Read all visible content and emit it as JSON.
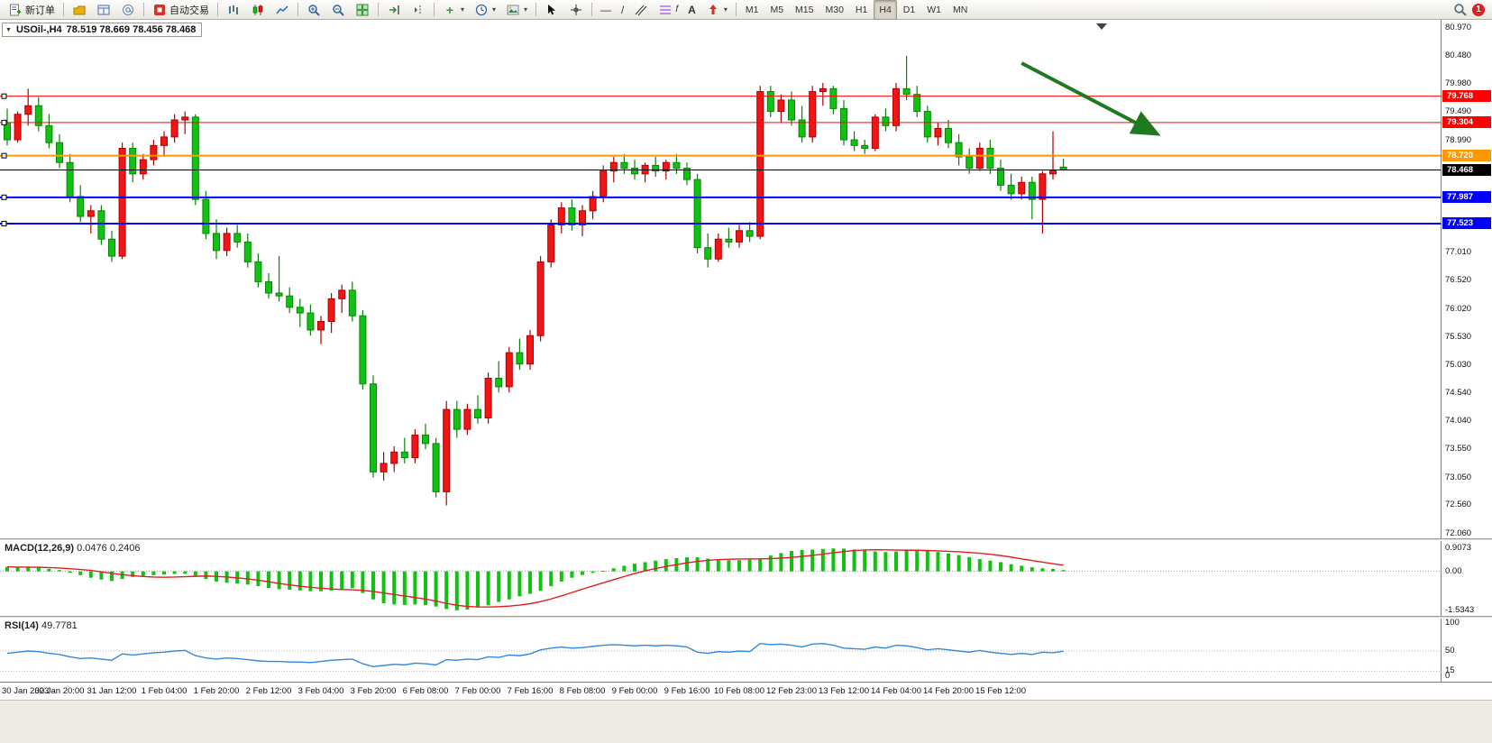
{
  "toolbar": {
    "new_order_label": "新订单",
    "autotrading_label": "自动交易",
    "timeframes": [
      "M1",
      "M5",
      "M15",
      "M30",
      "H1",
      "H4",
      "D1",
      "W1",
      "MN"
    ],
    "active_timeframe": "H4",
    "notification_count": "1"
  },
  "icons": {
    "collapse": "▼",
    "caret": "▾",
    "plus": "+",
    "dash": "—",
    "slash": "/",
    "fib_f": "f",
    "letter_a": "A"
  },
  "chart": {
    "title_symbol": "USOil-,H4",
    "title_ohlc": "78.519 78.669 78.456 78.468"
  },
  "indicators": {
    "macd": {
      "label": "MACD(12,26,9)",
      "value_main": "0.0476",
      "value_signal": "0.2406",
      "axis": [
        "0.9073",
        "0.00",
        "-1.5343"
      ]
    },
    "rsi": {
      "label": "RSI(14)",
      "value": "49.7781",
      "axis": [
        "100",
        "50",
        "15",
        "0"
      ]
    }
  },
  "chart_data": {
    "type": "candlestick",
    "symbol": "USOil-",
    "timeframe": "H4",
    "ohlc_display": {
      "open": "78.519",
      "high": "78.669",
      "low": "78.456",
      "close": "78.468"
    },
    "price_axis": [
      "80.970",
      "80.480",
      "79.980",
      "79.490",
      "78.990",
      "78.500",
      "78.010",
      "77.520",
      "77.010",
      "76.520",
      "76.020",
      "75.530",
      "75.030",
      "74.540",
      "74.040",
      "73.550",
      "73.050",
      "72.560",
      "72.060"
    ],
    "time_labels": [
      "30 Jan 2023",
      "30 Jan 20:00",
      "31 Jan 12:00",
      "1 Feb 04:00",
      "1 Feb 20:00",
      "2 Feb 12:00",
      "3 Feb 04:00",
      "3 Feb 20:00",
      "6 Feb 08:00",
      "7 Feb 00:00",
      "7 Feb 16:00",
      "8 Feb 08:00",
      "9 Feb 00:00",
      "9 Feb 16:00",
      "10 Feb 08:00",
      "12 Feb 23:00",
      "13 Feb 12:00",
      "14 Feb 04:00",
      "14 Feb 20:00",
      "15 Feb 12:00"
    ],
    "colors": {
      "up": "#f21515",
      "up_border": "#b00000",
      "down": "#12c212",
      "down_border": "#078507"
    },
    "hlines": [
      {
        "name": "resistance-line-1",
        "price": 79.768,
        "label": "79.768",
        "color": "#fe0000",
        "width": 1,
        "handle": true
      },
      {
        "name": "resistance-line-2",
        "price": 79.304,
        "label": "79.304",
        "color": "#fe0000",
        "width": 1,
        "handle": true
      },
      {
        "name": "pivot-line",
        "price": 78.72,
        "label": "78.720",
        "color": "#ff9800",
        "width": 2,
        "handle": true
      },
      {
        "name": "current-price-line",
        "price": 78.468,
        "label": "78.468",
        "color": "#000000",
        "width": 1,
        "handle": false
      },
      {
        "name": "support-line-1",
        "price": 77.987,
        "label": "77.987",
        "color": "#0000fe",
        "width": 2,
        "handle": true
      },
      {
        "name": "support-line-2",
        "price": 77.523,
        "label": "77.523",
        "color": "#0000fe",
        "width": 2,
        "handle": true
      }
    ],
    "arrow": {
      "i1": 97,
      "p1": 80.35,
      "i2": 110,
      "p2": 79.1,
      "color": "#1f7a1f"
    },
    "candles": [
      [
        79.3,
        79.55,
        78.9,
        79.0
      ],
      [
        79.0,
        79.5,
        78.95,
        79.45
      ],
      [
        79.45,
        79.9,
        79.25,
        79.6
      ],
      [
        79.6,
        79.75,
        79.15,
        79.25
      ],
      [
        79.25,
        79.45,
        78.85,
        78.95
      ],
      [
        78.95,
        79.1,
        78.5,
        78.6
      ],
      [
        78.6,
        78.75,
        77.9,
        78.0
      ],
      [
        78.0,
        78.2,
        77.55,
        77.65
      ],
      [
        77.65,
        77.85,
        77.35,
        77.75
      ],
      [
        77.75,
        77.85,
        77.15,
        77.25
      ],
      [
        77.25,
        77.4,
        76.85,
        76.95
      ],
      [
        76.95,
        78.95,
        76.9,
        78.85
      ],
      [
        78.85,
        78.95,
        78.25,
        78.4
      ],
      [
        78.4,
        78.75,
        78.3,
        78.65
      ],
      [
        78.65,
        79.0,
        78.55,
        78.9
      ],
      [
        78.9,
        79.15,
        78.7,
        79.05
      ],
      [
        79.05,
        79.45,
        78.95,
        79.35
      ],
      [
        79.35,
        79.5,
        79.1,
        79.4
      ],
      [
        79.4,
        79.45,
        77.85,
        77.95
      ],
      [
        77.95,
        78.1,
        77.25,
        77.35
      ],
      [
        77.35,
        77.6,
        76.9,
        77.05
      ],
      [
        77.05,
        77.45,
        76.95,
        77.35
      ],
      [
        77.35,
        77.5,
        77.1,
        77.2
      ],
      [
        77.2,
        77.35,
        76.75,
        76.85
      ],
      [
        76.85,
        77.0,
        76.4,
        76.5
      ],
      [
        76.5,
        76.65,
        76.2,
        76.3
      ],
      [
        76.3,
        76.95,
        76.15,
        76.25
      ],
      [
        76.25,
        76.4,
        75.95,
        76.05
      ],
      [
        76.05,
        76.2,
        75.7,
        75.95
      ],
      [
        75.95,
        76.1,
        75.55,
        75.65
      ],
      [
        75.65,
        75.9,
        75.4,
        75.8
      ],
      [
        75.8,
        76.3,
        75.6,
        76.2
      ],
      [
        76.2,
        76.45,
        75.95,
        76.35
      ],
      [
        76.35,
        76.5,
        75.8,
        75.9
      ],
      [
        75.9,
        76.0,
        74.6,
        74.7
      ],
      [
        74.7,
        74.85,
        73.05,
        73.15
      ],
      [
        73.15,
        73.5,
        73.0,
        73.3
      ],
      [
        73.3,
        73.6,
        73.15,
        73.5
      ],
      [
        73.5,
        73.75,
        73.3,
        73.4
      ],
      [
        73.4,
        73.9,
        73.3,
        73.8
      ],
      [
        73.8,
        74.0,
        73.55,
        73.65
      ],
      [
        73.65,
        73.75,
        72.7,
        72.8
      ],
      [
        72.8,
        74.4,
        72.56,
        74.25
      ],
      [
        74.25,
        74.4,
        73.75,
        73.9
      ],
      [
        73.9,
        74.35,
        73.8,
        74.25
      ],
      [
        74.25,
        74.5,
        74.0,
        74.1
      ],
      [
        74.1,
        74.9,
        74.0,
        74.8
      ],
      [
        74.8,
        75.1,
        74.55,
        74.65
      ],
      [
        74.65,
        75.35,
        74.55,
        75.25
      ],
      [
        75.25,
        75.5,
        74.95,
        75.05
      ],
      [
        75.05,
        75.65,
        74.95,
        75.55
      ],
      [
        75.55,
        76.95,
        75.45,
        76.85
      ],
      [
        76.85,
        77.6,
        76.75,
        77.5
      ],
      [
        77.5,
        77.9,
        77.35,
        77.8
      ],
      [
        77.8,
        77.95,
        77.4,
        77.5
      ],
      [
        77.5,
        77.85,
        77.3,
        77.75
      ],
      [
        77.75,
        78.1,
        77.6,
        78.0
      ],
      [
        78.0,
        78.55,
        77.9,
        78.45
      ],
      [
        78.45,
        78.7,
        78.25,
        78.6
      ],
      [
        78.6,
        78.75,
        78.4,
        78.5
      ],
      [
        78.5,
        78.65,
        78.3,
        78.4
      ],
      [
        78.4,
        78.6,
        78.25,
        78.55
      ],
      [
        78.55,
        78.7,
        78.35,
        78.45
      ],
      [
        78.45,
        78.65,
        78.3,
        78.6
      ],
      [
        78.6,
        78.75,
        78.4,
        78.5
      ],
      [
        78.5,
        78.6,
        78.2,
        78.3
      ],
      [
        78.3,
        78.4,
        77.0,
        77.1
      ],
      [
        77.1,
        77.35,
        76.75,
        76.9
      ],
      [
        76.9,
        77.35,
        76.85,
        77.25
      ],
      [
        77.25,
        77.45,
        77.1,
        77.2
      ],
      [
        77.2,
        77.5,
        77.1,
        77.4
      ],
      [
        77.4,
        77.55,
        77.2,
        77.3
      ],
      [
        77.3,
        79.95,
        77.25,
        79.85
      ],
      [
        79.85,
        79.95,
        79.4,
        79.5
      ],
      [
        79.5,
        79.8,
        79.3,
        79.7
      ],
      [
        79.7,
        79.85,
        79.25,
        79.35
      ],
      [
        79.35,
        79.6,
        78.95,
        79.05
      ],
      [
        79.05,
        79.95,
        78.95,
        79.85
      ],
      [
        79.85,
        80.0,
        79.6,
        79.9
      ],
      [
        79.9,
        79.95,
        79.45,
        79.55
      ],
      [
        79.55,
        79.7,
        78.9,
        79.0
      ],
      [
        79.0,
        79.15,
        78.8,
        78.9
      ],
      [
        78.9,
        79.0,
        78.75,
        78.85
      ],
      [
        78.85,
        79.45,
        78.8,
        79.4
      ],
      [
        79.4,
        79.55,
        79.15,
        79.25
      ],
      [
        79.25,
        80.0,
        79.15,
        79.9
      ],
      [
        79.9,
        80.48,
        79.7,
        79.8
      ],
      [
        79.8,
        79.95,
        79.4,
        79.5
      ],
      [
        79.5,
        79.6,
        78.95,
        79.05
      ],
      [
        79.05,
        79.3,
        78.9,
        79.2
      ],
      [
        79.2,
        79.35,
        78.85,
        78.95
      ],
      [
        78.95,
        79.1,
        78.55,
        78.7
      ],
      [
        78.7,
        78.85,
        78.4,
        78.5
      ],
      [
        78.5,
        78.95,
        78.45,
        78.85
      ],
      [
        78.85,
        79.0,
        78.4,
        78.5
      ],
      [
        78.5,
        78.65,
        78.1,
        78.2
      ],
      [
        78.2,
        78.4,
        77.95,
        78.05
      ],
      [
        78.05,
        78.35,
        77.95,
        78.25
      ],
      [
        78.25,
        78.35,
        77.6,
        77.95
      ],
      [
        77.95,
        78.45,
        77.35,
        78.4
      ],
      [
        78.4,
        79.15,
        78.3,
        78.45
      ],
      [
        78.519,
        78.669,
        78.456,
        78.468
      ]
    ],
    "macd": {
      "color_hist": "#12c212",
      "color_signal": "#e02020",
      "hist": [
        0.18,
        0.15,
        0.17,
        0.14,
        0.1,
        0.05,
        -0.05,
        -0.15,
        -0.25,
        -0.32,
        -0.38,
        -0.3,
        -0.22,
        -0.18,
        -0.15,
        -0.12,
        -0.1,
        -0.1,
        -0.2,
        -0.3,
        -0.4,
        -0.45,
        -0.48,
        -0.52,
        -0.58,
        -0.65,
        -0.7,
        -0.72,
        -0.75,
        -0.78,
        -0.78,
        -0.75,
        -0.7,
        -0.66,
        -0.85,
        -1.1,
        -1.25,
        -1.3,
        -1.32,
        -1.3,
        -1.32,
        -1.38,
        -1.48,
        -1.53,
        -1.5,
        -1.42,
        -1.33,
        -1.2,
        -1.1,
        -0.98,
        -0.88,
        -0.76,
        -0.58,
        -0.4,
        -0.25,
        -0.14,
        -0.06,
        0.02,
        0.12,
        0.22,
        0.3,
        0.36,
        0.42,
        0.48,
        0.52,
        0.55,
        0.55,
        0.5,
        0.46,
        0.44,
        0.44,
        0.46,
        0.48,
        0.62,
        0.72,
        0.8,
        0.84,
        0.85,
        0.88,
        0.9,
        0.89,
        0.86,
        0.82,
        0.78,
        0.76,
        0.78,
        0.82,
        0.84,
        0.82,
        0.76,
        0.7,
        0.64,
        0.56,
        0.48,
        0.42,
        0.36,
        0.28,
        0.22,
        0.16,
        0.12,
        0.1,
        0.05
      ]
    },
    "rsi": {
      "color": "#3388dd",
      "levels": [
        50,
        15
      ],
      "values": [
        46,
        48,
        50,
        49,
        46,
        44,
        40,
        37,
        38,
        36,
        34,
        45,
        43,
        45,
        47,
        48,
        50,
        51,
        42,
        38,
        36,
        38,
        37,
        35,
        33,
        32,
        32,
        31,
        31,
        30,
        32,
        34,
        35,
        36,
        28,
        23,
        25,
        27,
        26,
        29,
        28,
        26,
        35,
        34,
        36,
        35,
        40,
        39,
        43,
        42,
        45,
        52,
        55,
        57,
        55,
        56,
        58,
        60,
        61,
        60,
        59,
        60,
        59,
        60,
        59,
        57,
        48,
        46,
        49,
        48,
        50,
        49,
        63,
        61,
        62,
        60,
        57,
        62,
        63,
        60,
        55,
        54,
        53,
        57,
        55,
        60,
        59,
        56,
        52,
        54,
        52,
        50,
        48,
        51,
        48,
        46,
        44,
        46,
        44,
        48,
        47,
        49.78
      ]
    }
  }
}
